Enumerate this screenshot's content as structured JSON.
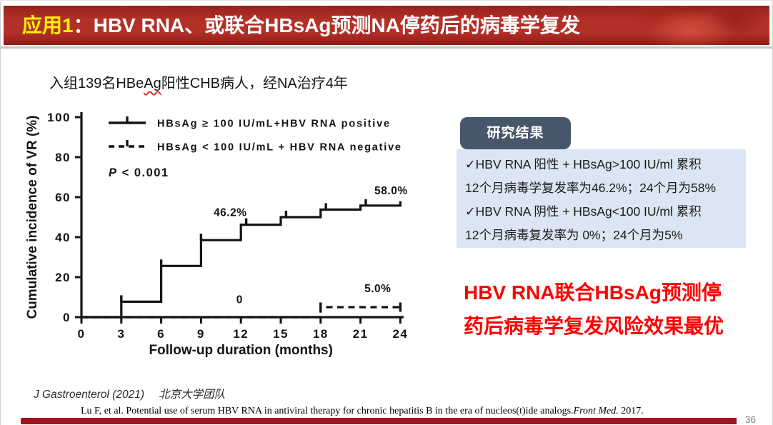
{
  "header": {
    "app_label": "应用1",
    "colon": "：",
    "title_rest": "HBV RNA、或联合HBsAg预测NA停药后的病毒学复发"
  },
  "subtitle": {
    "pre": "入组139名HBe",
    "misspell": "Ag",
    "post": "阳性CHB病人，经NA治疗4年"
  },
  "results": {
    "badge_label": "研究结果",
    "box_lines": [
      "✓HBV RNA 阳性 + HBsAg>100 IU/ml 累积",
      "12个月病毒学复发率为46.2%；24个月为58%",
      "✓HBV RNA 阴性 + HBsAg<100 IU/ml 累积",
      "12个月病毒复发率为 0%；24个月为5%"
    ]
  },
  "conclusion": {
    "line1": "HBV RNA联合HBsAg预测停",
    "line2": "药后病毒学复发风险效果最优"
  },
  "footer": {
    "source_journal": "J Gastroenterol (2021)",
    "source_team": "北京大学团队",
    "citation_text": "Lu F, et al. Potential use of serum HBV RNA in antiviral therapy for chronic hepatitis B in the era of nucleos(t)ide analogs.",
    "citation_journal": "Front Med.",
    "citation_year": " 2017.",
    "page_number": "36"
  },
  "colors": {
    "banner_red": "#b23028",
    "title_yellow": "#fff200",
    "badge_slate": "#47576b",
    "box_blue": "#dbe5f3",
    "conclusion_red": "#fe0000",
    "bottom_bar_red": "#a31020",
    "chart_ink": "#141414"
  },
  "chart_data": {
    "type": "line",
    "subtype": "kaplan_meier_step",
    "title": "",
    "xlabel": "Follow-up duration (months)",
    "ylabel": "Cumulative incidence of VR (%)",
    "xlim": [
      0,
      24
    ],
    "ylim": [
      0,
      100
    ],
    "x_ticks": [
      0,
      3,
      6,
      9,
      12,
      15,
      18,
      21,
      24
    ],
    "y_ticks": [
      0,
      20,
      40,
      60,
      80,
      100
    ],
    "grid": false,
    "legend_position": "top-left-inside",
    "p_value_label": "P < 0.001",
    "series": [
      {
        "name": "HBsAg ≥ 100 IU/mL+HBV RNA positive",
        "style": "solid",
        "x": [
          0,
          3,
          3,
          6,
          6,
          9,
          9,
          12,
          12,
          15,
          15,
          18,
          18,
          21,
          21,
          24,
          24
        ],
        "y": [
          0,
          0,
          7.7,
          7.7,
          25.6,
          25.6,
          38.5,
          38.5,
          46.2,
          46.2,
          50.0,
          50.0,
          53.8,
          53.8,
          55.8,
          55.8,
          58.0
        ],
        "censor_x": [
          3,
          6,
          9,
          12.4,
          15.4,
          18.4,
          21.4
        ],
        "censor_y": [
          7.7,
          25.6,
          38.5,
          46.2,
          50.0,
          53.8,
          55.8
        ]
      },
      {
        "name": "HBsAg < 100 IU/mL + HBV RNA negative",
        "style": "dashed",
        "x": [
          0,
          18,
          18,
          24
        ],
        "y": [
          0,
          0,
          5,
          5
        ],
        "censor_x": [
          18,
          24
        ],
        "censor_y": [
          5,
          5
        ]
      }
    ],
    "annotations": [
      {
        "text": "46.2%",
        "x": 11.2,
        "y": 50.5
      },
      {
        "text": "58.0%",
        "x": 23.3,
        "y": 61.5
      },
      {
        "text": "0",
        "x": 11.9,
        "y": 7.0
      },
      {
        "text": "5.0%",
        "x": 22.3,
        "y": 12.5
      }
    ]
  }
}
